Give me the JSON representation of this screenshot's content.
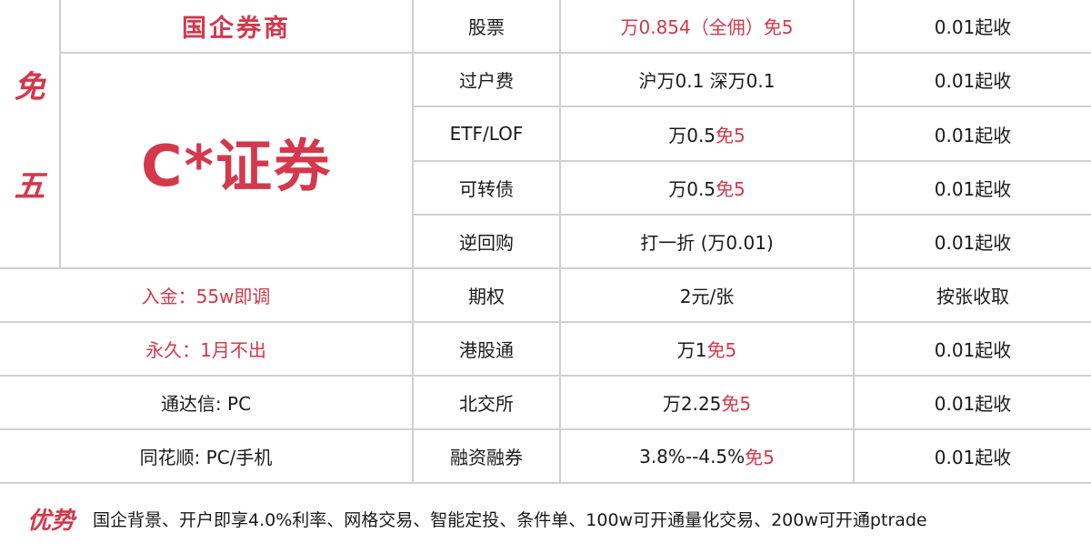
{
  "side_label": [
    "免",
    "五"
  ],
  "broker": {
    "type": "国企券商",
    "name": "C*证券"
  },
  "left_rows": [
    {
      "text": "入金：55w即调",
      "red": true
    },
    {
      "text": "永久：1月不出",
      "red": true
    },
    {
      "text": "通达信: PC",
      "red": false
    },
    {
      "text": "同花顺: PC/手机",
      "red": false
    }
  ],
  "fees": [
    {
      "item": "股票",
      "rate": "万0.854（全佣）免5",
      "rate_extra": "",
      "rate_red": true,
      "min": "0.01起收"
    },
    {
      "item": "过户费",
      "rate": "沪万0.1 深万0.1",
      "rate_extra": "",
      "rate_red": false,
      "min": "0.01起收"
    },
    {
      "item": "ETF/LOF",
      "rate": "万0.5 ",
      "rate_extra": "免5",
      "rate_red": false,
      "min": "0.01起收"
    },
    {
      "item": "可转债",
      "rate": "万0.5 ",
      "rate_extra": "免5",
      "rate_red": false,
      "min": "0.01起收"
    },
    {
      "item": "逆回购",
      "rate": "打一折 (万0.01)",
      "rate_extra": "",
      "rate_red": false,
      "min": "0.01起收"
    },
    {
      "item": "期权",
      "rate": "2元/张",
      "rate_extra": "",
      "rate_red": false,
      "min": "按张收取"
    },
    {
      "item": "港股通",
      "rate": "万1 ",
      "rate_extra": "免5",
      "rate_red": false,
      "min": "0.01起收"
    },
    {
      "item": "北交所",
      "rate": "万2.25 ",
      "rate_extra": "免5",
      "rate_red": false,
      "min": "0.01起收"
    },
    {
      "item": "融资融券",
      "rate": "3.8%--4.5% ",
      "rate_extra": "免5",
      "rate_red": false,
      "min": "0.01起收"
    }
  ],
  "advantages": {
    "label": "优势",
    "text": "国企背景、开户即享4.0%利率、网格交易、智能定投、条件单、100w可开通量化交易、200w可开通ptrade"
  },
  "colors": {
    "accent": "#d4384b",
    "grid": "#d0d0d0"
  }
}
